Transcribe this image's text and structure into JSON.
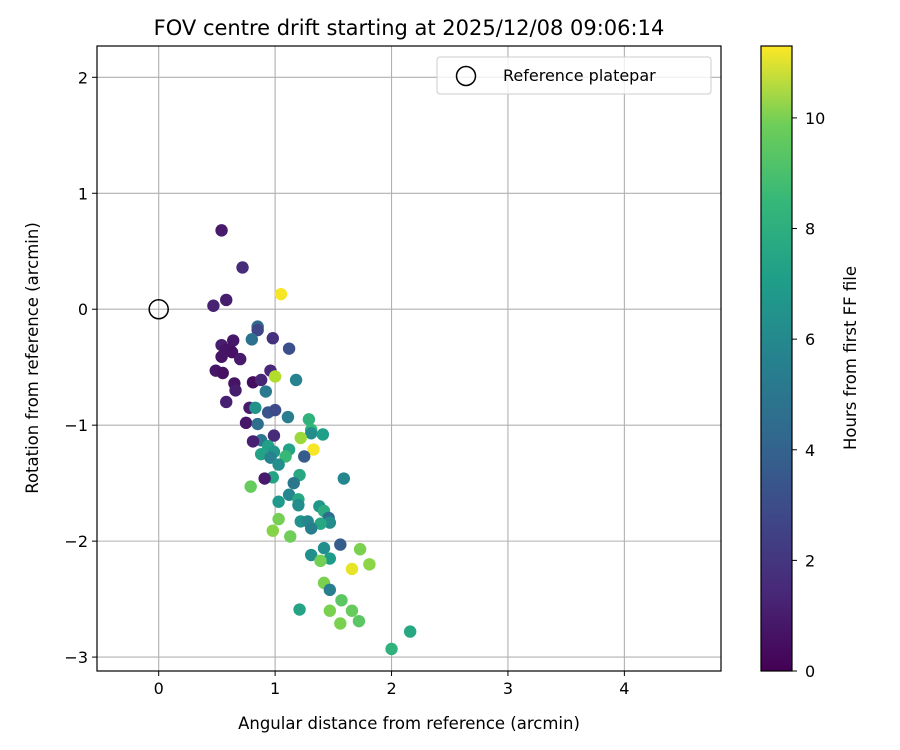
{
  "chart_data": {
    "type": "scatter",
    "title": "FOV centre drift starting at 2025/12/08 09:06:14",
    "xlabel": "Angular distance from reference (arcmin)",
    "ylabel": "Rotation from reference (arcmin)",
    "xlim": [
      -0.53,
      4.83
    ],
    "ylim": [
      -3.12,
      2.27
    ],
    "xticks": [
      0,
      1,
      2,
      3,
      4
    ],
    "yticks": [
      -3,
      -2,
      -1,
      0,
      1,
      2
    ],
    "grid": true,
    "legend": {
      "placement": "top-right",
      "entries": [
        "Reference platepar"
      ]
    },
    "reference_point": {
      "x": 0,
      "y": 0,
      "label": "Reference platepar"
    },
    "colorbar": {
      "label": "Hours from first FF file",
      "colormap": "viridis",
      "range": [
        0,
        11.3
      ],
      "ticks": [
        0,
        2,
        4,
        6,
        8,
        10
      ]
    },
    "points": [
      {
        "x": 0.54,
        "y": 0.68,
        "hours": 0.8
      },
      {
        "x": 0.72,
        "y": 0.36,
        "hours": 1.4
      },
      {
        "x": 0.47,
        "y": 0.03,
        "hours": 1.1
      },
      {
        "x": 0.58,
        "y": 0.08,
        "hours": 0.9
      },
      {
        "x": 1.05,
        "y": 0.13,
        "hours": 11.2
      },
      {
        "x": 0.85,
        "y": -0.15,
        "hours": 3.8
      },
      {
        "x": 0.85,
        "y": -0.18,
        "hours": 2.4
      },
      {
        "x": 0.98,
        "y": -0.25,
        "hours": 1.6
      },
      {
        "x": 0.8,
        "y": -0.26,
        "hours": 4.2
      },
      {
        "x": 0.64,
        "y": -0.27,
        "hours": 0.7
      },
      {
        "x": 1.12,
        "y": -0.34,
        "hours": 2.8
      },
      {
        "x": 0.54,
        "y": -0.31,
        "hours": 0.9
      },
      {
        "x": 0.58,
        "y": -0.35,
        "hours": 0.6
      },
      {
        "x": 0.63,
        "y": -0.37,
        "hours": 0.5
      },
      {
        "x": 0.54,
        "y": -0.41,
        "hours": 0.6
      },
      {
        "x": 0.7,
        "y": -0.43,
        "hours": 0.8
      },
      {
        "x": 0.49,
        "y": -0.53,
        "hours": 0.7
      },
      {
        "x": 0.55,
        "y": -0.55,
        "hours": 0.5
      },
      {
        "x": 0.96,
        "y": -0.53,
        "hours": 1.3
      },
      {
        "x": 1.0,
        "y": -0.58,
        "hours": 10.0
      },
      {
        "x": 1.18,
        "y": -0.61,
        "hours": 5.0
      },
      {
        "x": 0.81,
        "y": -0.63,
        "hours": 0.4
      },
      {
        "x": 0.88,
        "y": -0.61,
        "hours": 1.2
      },
      {
        "x": 0.65,
        "y": -0.64,
        "hours": 0.6
      },
      {
        "x": 0.66,
        "y": -0.7,
        "hours": 0.9
      },
      {
        "x": 0.92,
        "y": -0.71,
        "hours": 4.6
      },
      {
        "x": 0.58,
        "y": -0.8,
        "hours": 1.0
      },
      {
        "x": 0.78,
        "y": -0.85,
        "hours": 0.8
      },
      {
        "x": 0.83,
        "y": -0.85,
        "hours": 5.8
      },
      {
        "x": 0.94,
        "y": -0.89,
        "hours": 3.0
      },
      {
        "x": 1.0,
        "y": -0.87,
        "hours": 2.6
      },
      {
        "x": 1.11,
        "y": -0.93,
        "hours": 4.8
      },
      {
        "x": 1.29,
        "y": -0.95,
        "hours": 7.3
      },
      {
        "x": 0.75,
        "y": -0.98,
        "hours": 0.7
      },
      {
        "x": 0.85,
        "y": -0.99,
        "hours": 4.1
      },
      {
        "x": 1.31,
        "y": -1.04,
        "hours": 7.5
      },
      {
        "x": 1.31,
        "y": -1.07,
        "hours": 5.5
      },
      {
        "x": 1.41,
        "y": -1.08,
        "hours": 6.3
      },
      {
        "x": 0.99,
        "y": -1.09,
        "hours": 1.4
      },
      {
        "x": 1.22,
        "y": -1.11,
        "hours": 9.6
      },
      {
        "x": 0.88,
        "y": -1.13,
        "hours": 4.5
      },
      {
        "x": 0.81,
        "y": -1.14,
        "hours": 1.0
      },
      {
        "x": 0.94,
        "y": -1.18,
        "hours": 6.4
      },
      {
        "x": 1.12,
        "y": -1.21,
        "hours": 6.6
      },
      {
        "x": 1.33,
        "y": -1.21,
        "hours": 11.2
      },
      {
        "x": 0.88,
        "y": -1.25,
        "hours": 6.5
      },
      {
        "x": 0.99,
        "y": -1.23,
        "hours": 5.9
      },
      {
        "x": 1.09,
        "y": -1.27,
        "hours": 7.6
      },
      {
        "x": 1.25,
        "y": -1.27,
        "hours": 3.3
      },
      {
        "x": 0.96,
        "y": -1.28,
        "hours": 5.0
      },
      {
        "x": 1.03,
        "y": -1.34,
        "hours": 5.6
      },
      {
        "x": 1.21,
        "y": -1.43,
        "hours": 6.8
      },
      {
        "x": 0.98,
        "y": -1.45,
        "hours": 6.6
      },
      {
        "x": 0.91,
        "y": -1.46,
        "hours": 0.8
      },
      {
        "x": 1.59,
        "y": -1.46,
        "hours": 5.2
      },
      {
        "x": 1.16,
        "y": -1.5,
        "hours": 4.5
      },
      {
        "x": 0.79,
        "y": -1.53,
        "hours": 8.6
      },
      {
        "x": 1.12,
        "y": -1.6,
        "hours": 5.2
      },
      {
        "x": 1.2,
        "y": -1.64,
        "hours": 6.8
      },
      {
        "x": 1.03,
        "y": -1.66,
        "hours": 6.1
      },
      {
        "x": 1.2,
        "y": -1.69,
        "hours": 5.5
      },
      {
        "x": 1.38,
        "y": -1.7,
        "hours": 5.9
      },
      {
        "x": 1.42,
        "y": -1.74,
        "hours": 7.0
      },
      {
        "x": 1.46,
        "y": -1.8,
        "hours": 4.0
      },
      {
        "x": 1.03,
        "y": -1.81,
        "hours": 8.9
      },
      {
        "x": 1.22,
        "y": -1.83,
        "hours": 5.8
      },
      {
        "x": 1.28,
        "y": -1.83,
        "hours": 5.2
      },
      {
        "x": 1.47,
        "y": -1.84,
        "hours": 5.5
      },
      {
        "x": 1.39,
        "y": -1.85,
        "hours": 6.8
      },
      {
        "x": 1.31,
        "y": -1.89,
        "hours": 4.9
      },
      {
        "x": 0.98,
        "y": -1.91,
        "hours": 9.2
      },
      {
        "x": 1.13,
        "y": -1.96,
        "hours": 8.8
      },
      {
        "x": 1.56,
        "y": -2.03,
        "hours": 3.3
      },
      {
        "x": 1.42,
        "y": -2.06,
        "hours": 5.6
      },
      {
        "x": 1.73,
        "y": -2.07,
        "hours": 9.0
      },
      {
        "x": 1.31,
        "y": -2.12,
        "hours": 5.6
      },
      {
        "x": 1.47,
        "y": -2.15,
        "hours": 6.2
      },
      {
        "x": 1.39,
        "y": -2.17,
        "hours": 8.9
      },
      {
        "x": 1.81,
        "y": -2.2,
        "hours": 9.3
      },
      {
        "x": 1.66,
        "y": -2.24,
        "hours": 10.9
      },
      {
        "x": 1.42,
        "y": -2.36,
        "hours": 9.0
      },
      {
        "x": 1.47,
        "y": -2.42,
        "hours": 4.8
      },
      {
        "x": 1.57,
        "y": -2.51,
        "hours": 8.4
      },
      {
        "x": 1.21,
        "y": -2.59,
        "hours": 6.6
      },
      {
        "x": 1.47,
        "y": -2.6,
        "hours": 9.0
      },
      {
        "x": 1.66,
        "y": -2.6,
        "hours": 8.6
      },
      {
        "x": 1.56,
        "y": -2.71,
        "hours": 9.0
      },
      {
        "x": 1.72,
        "y": -2.69,
        "hours": 8.4
      },
      {
        "x": 2.16,
        "y": -2.78,
        "hours": 6.8
      },
      {
        "x": 2.0,
        "y": -2.93,
        "hours": 7.3
      }
    ]
  }
}
